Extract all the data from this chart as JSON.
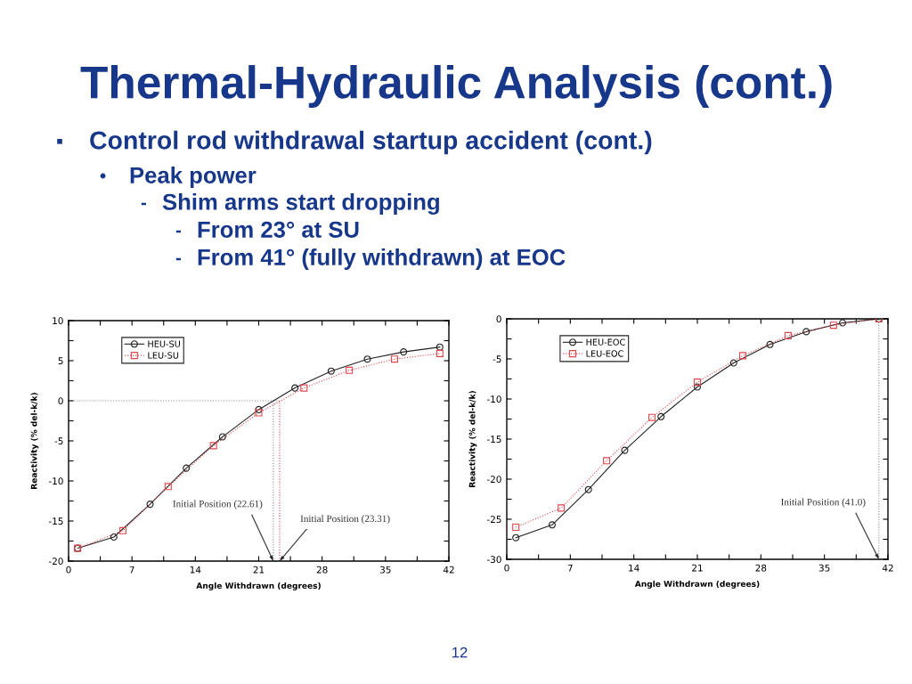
{
  "chart_data": [
    {
      "type": "other",
      "title": "Thermal-Hydraulic Analysis (cont.)",
      "annotations": [
        "▪ Control rod withdrawal startup accident (cont.)",
        "• Peak power",
        "- Shim arms start dropping",
        "- From 23° at SU",
        "- From 41° (fully withdrawn) at EOC",
        "12"
      ]
    },
    {
      "type": "line",
      "xlabel": "Angle Withdrawn (degrees)",
      "ylabel": "Reactivity (% del-k/k)",
      "xlim": [
        0,
        42
      ],
      "ylim": [
        -20,
        10
      ],
      "xticks": [
        0,
        {
          "value": 3.5,
          "label": null
        },
        7,
        {
          "value": 10.5,
          "label": null
        },
        14,
        {
          "value": 17.5,
          "label": null
        },
        21,
        {
          "value": 24.5,
          "label": null
        },
        28,
        {
          "value": 31.5,
          "label": null
        },
        35,
        {
          "value": 38.5,
          "label": null
        },
        42
      ],
      "yticks": [
        -20,
        {
          "value": -17.5,
          "label": null
        },
        -15,
        {
          "value": -12.5,
          "label": null
        },
        -10,
        {
          "value": -7.5,
          "label": null
        },
        -5,
        {
          "value": -2.5,
          "label": null
        },
        0,
        {
          "value": 2.5,
          "label": null
        },
        5,
        {
          "value": 7.5,
          "label": null
        },
        10
      ],
      "legend": "top left",
      "series": [
        {
          "name": "HEU-SU",
          "color": "#222222",
          "marker": "circle",
          "line_style": "solid",
          "x": [
            1,
            5,
            9,
            13,
            17,
            21,
            25,
            29,
            33,
            37,
            41
          ],
          "values": [
            -18.4,
            -17.0,
            -12.9,
            -8.4,
            -4.5,
            -1.1,
            1.6,
            3.7,
            5.2,
            6.1,
            6.7
          ]
        },
        {
          "name": "LEU-SU",
          "color": "#e0474c",
          "marker": "square",
          "line_style": "dotted",
          "x": [
            1,
            6,
            11,
            16,
            21,
            26,
            31,
            36,
            41
          ],
          "values": [
            -18.4,
            -16.2,
            -10.7,
            -5.6,
            -1.5,
            1.6,
            3.8,
            5.2,
            5.9
          ]
        }
      ],
      "ref_lines": [
        {
          "axis": "y",
          "value": 0,
          "color": "#8c8c8c",
          "line_style": "dotted"
        },
        {
          "axis": "x",
          "value": 22.61,
          "label": "Initial Position (22.61)",
          "color": "#8c8c8c",
          "line_style": "dotted"
        },
        {
          "axis": "x",
          "value": 23.31,
          "label": "Initial Position (23.31)",
          "color": "#e0474c",
          "line_style": "dotted"
        }
      ]
    },
    {
      "type": "line",
      "xlabel": "Angle Withdrawn (degrees)",
      "ylabel": "Reactivity (% del-k/k)",
      "xlim": [
        0,
        42
      ],
      "ylim": [
        -30,
        0
      ],
      "xticks": [
        0,
        {
          "value": 3.5,
          "label": null
        },
        7,
        {
          "value": 10.5,
          "label": null
        },
        14,
        {
          "value": 17.5,
          "label": null
        },
        21,
        {
          "value": 24.5,
          "label": null
        },
        28,
        {
          "value": 31.5,
          "label": null
        },
        35,
        {
          "value": 38.5,
          "label": null
        },
        42
      ],
      "yticks": [
        -30,
        {
          "value": -27.5,
          "label": null
        },
        -25,
        {
          "value": -22.5,
          "label": null
        },
        -20,
        {
          "value": -17.5,
          "label": null
        },
        -15,
        {
          "value": -12.5,
          "label": null
        },
        -10,
        {
          "value": -7.5,
          "label": null
        },
        -5,
        {
          "value": -2.5,
          "label": null
        },
        0
      ],
      "legend": "top left",
      "series": [
        {
          "name": "HEU-EOC",
          "color": "#222222",
          "marker": "circle",
          "line_style": "solid",
          "x": [
            1,
            5,
            9,
            13,
            17,
            21,
            25,
            29,
            33,
            37,
            41
          ],
          "values": [
            -27.3,
            -25.7,
            -21.3,
            -16.4,
            -12.2,
            -8.5,
            -5.5,
            -3.2,
            -1.6,
            -0.5,
            0
          ]
        },
        {
          "name": "LEU-EOC",
          "color": "#e0474c",
          "marker": "square",
          "line_style": "dotted",
          "x": [
            1,
            6,
            11,
            16,
            21,
            26,
            31,
            36,
            41
          ],
          "values": [
            -26.0,
            -23.6,
            -17.7,
            -12.3,
            -7.9,
            -4.6,
            -2.1,
            -0.8,
            0
          ]
        }
      ],
      "ref_lines": [
        {
          "axis": "x",
          "value": 41.0,
          "label": "Initial Position (41.0)",
          "color": "#8c8c8c",
          "line_style": "dotted"
        }
      ]
    }
  ]
}
